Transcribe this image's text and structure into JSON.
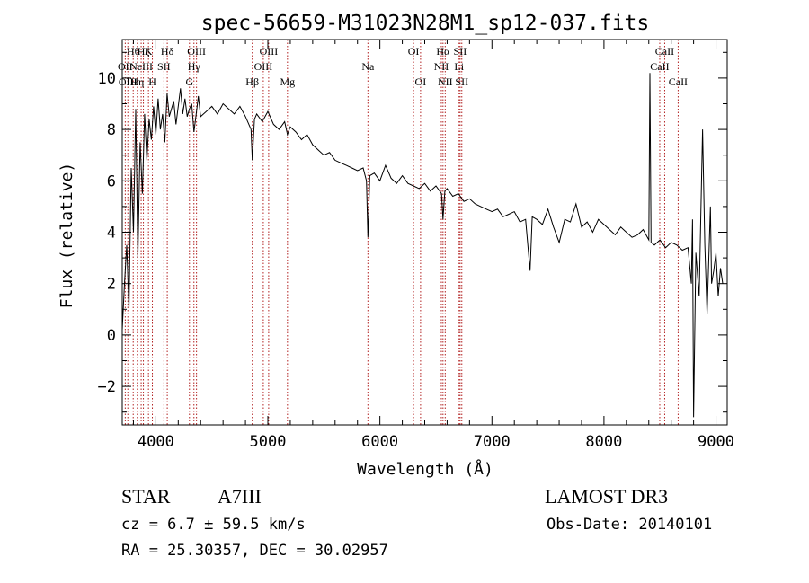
{
  "chart_data": {
    "type": "line",
    "title": "spec-56659-M31023N28M1_sp12-037.fits",
    "xlabel": "Wavelength (Å)",
    "ylabel": "Flux (relative)",
    "xlim": [
      3700,
      9100
    ],
    "ylim": [
      -3.5,
      11.5
    ],
    "xticks": [
      {
        "value": 4000,
        "label": "4000"
      },
      {
        "value": 5000,
        "label": "5000"
      },
      {
        "value": 6000,
        "label": "6000"
      },
      {
        "value": 7000,
        "label": "7000"
      },
      {
        "value": 8000,
        "label": "8000"
      },
      {
        "value": 9000,
        "label": "9000"
      }
    ],
    "yticks": [
      {
        "value": -2,
        "label": "−2"
      },
      {
        "value": 0,
        "label": "0"
      },
      {
        "value": 2,
        "label": "2"
      },
      {
        "value": 4,
        "label": "4"
      },
      {
        "value": 6,
        "label": "6"
      },
      {
        "value": 8,
        "label": "8"
      },
      {
        "value": 10,
        "label": "10"
      }
    ],
    "series": [
      {
        "name": "flux",
        "x": [
          3700,
          3720,
          3740,
          3760,
          3780,
          3800,
          3820,
          3840,
          3860,
          3880,
          3900,
          3920,
          3940,
          3960,
          3980,
          4000,
          4020,
          4040,
          4060,
          4080,
          4100,
          4120,
          4140,
          4160,
          4180,
          4200,
          4220,
          4240,
          4260,
          4280,
          4300,
          4320,
          4340,
          4360,
          4380,
          4400,
          4450,
          4500,
          4550,
          4600,
          4650,
          4700,
          4750,
          4800,
          4850,
          4861,
          4880,
          4900,
          4950,
          5000,
          5050,
          5100,
          5150,
          5175,
          5200,
          5250,
          5300,
          5350,
          5400,
          5450,
          5500,
          5550,
          5600,
          5650,
          5700,
          5750,
          5800,
          5850,
          5880,
          5893,
          5910,
          5950,
          6000,
          6050,
          6100,
          6150,
          6200,
          6250,
          6300,
          6350,
          6400,
          6450,
          6500,
          6550,
          6563,
          6580,
          6600,
          6650,
          6700,
          6750,
          6800,
          6850,
          6900,
          6950,
          7000,
          7050,
          7100,
          7150,
          7200,
          7250,
          7300,
          7340,
          7360,
          7400,
          7450,
          7500,
          7550,
          7600,
          7650,
          7700,
          7750,
          7800,
          7850,
          7900,
          7950,
          8000,
          8050,
          8100,
          8150,
          8200,
          8250,
          8300,
          8350,
          8400,
          8410,
          8420,
          8450,
          8500,
          8550,
          8600,
          8650,
          8700,
          8750,
          8780,
          8790,
          8800,
          8820,
          8850,
          8880,
          8900,
          8920,
          8950,
          8960,
          8980,
          9000,
          9020,
          9040,
          9060
        ],
        "y": [
          0.2,
          2.0,
          3.5,
          1.0,
          6.5,
          4.0,
          8.8,
          3.0,
          7.5,
          5.5,
          8.6,
          6.8,
          8.4,
          7.6,
          8.9,
          7.8,
          9.2,
          8.0,
          8.6,
          7.5,
          9.4,
          8.5,
          8.8,
          9.1,
          8.2,
          8.9,
          9.6,
          8.6,
          9.2,
          8.5,
          8.8,
          9.0,
          7.9,
          8.6,
          9.3,
          8.5,
          8.7,
          8.9,
          8.6,
          9.0,
          8.8,
          8.6,
          8.9,
          8.5,
          8.0,
          6.8,
          8.4,
          8.6,
          8.3,
          8.7,
          8.2,
          8.0,
          8.3,
          7.8,
          8.1,
          7.9,
          7.6,
          7.8,
          7.4,
          7.2,
          7.0,
          7.1,
          6.8,
          6.7,
          6.6,
          6.5,
          6.4,
          6.5,
          6.0,
          3.8,
          6.2,
          6.3,
          6.0,
          6.6,
          6.1,
          5.9,
          6.2,
          5.9,
          5.8,
          5.7,
          5.9,
          5.6,
          5.8,
          5.5,
          4.5,
          5.6,
          5.7,
          5.4,
          5.5,
          5.2,
          5.3,
          5.1,
          5.0,
          4.9,
          4.8,
          4.9,
          4.6,
          4.7,
          4.8,
          4.4,
          4.5,
          2.5,
          4.6,
          4.5,
          4.3,
          4.9,
          4.2,
          3.6,
          4.5,
          4.4,
          5.1,
          4.2,
          4.4,
          4.0,
          4.5,
          4.3,
          4.1,
          3.9,
          4.2,
          4.0,
          3.8,
          3.9,
          4.1,
          3.7,
          10.2,
          3.6,
          3.5,
          3.7,
          3.4,
          3.6,
          3.5,
          3.3,
          3.4,
          2.0,
          4.5,
          -3.2,
          3.2,
          1.5,
          8.0,
          3.5,
          0.8,
          5.0,
          2.0,
          2.5,
          3.2,
          1.5,
          2.6,
          2.0
        ]
      }
    ],
    "lines": [
      {
        "value": 3727,
        "label": "OII",
        "row": 1
      },
      {
        "value": 3750,
        "label": "OIII",
        "row": 2
      },
      {
        "value": 3798,
        "label": "Hθ",
        "row": 0
      },
      {
        "value": 3835,
        "label": "Hη",
        "row": 2
      },
      {
        "value": 3869,
        "label": "NeIII",
        "row": 1
      },
      {
        "value": 3889,
        "label": "Hζ",
        "row": 0
      },
      {
        "value": 3934,
        "label": "K",
        "row": 0
      },
      {
        "value": 3969,
        "label": "H",
        "row": 2
      },
      {
        "value": 4072,
        "label": "SII",
        "row": 1
      },
      {
        "value": 4102,
        "label": "Hδ",
        "row": 0
      },
      {
        "value": 4300,
        "label": "G",
        "row": 2
      },
      {
        "value": 4340,
        "label": "Hγ",
        "row": 1
      },
      {
        "value": 4363,
        "label": "OIII",
        "row": 0
      },
      {
        "value": 4861,
        "label": "Hβ",
        "row": 2
      },
      {
        "value": 4959,
        "label": "OIII",
        "row": 1
      },
      {
        "value": 5007,
        "label": "OIII",
        "row": 0
      },
      {
        "value": 5175,
        "label": "Mg",
        "row": 2
      },
      {
        "value": 5893,
        "label": "Na",
        "row": 1
      },
      {
        "value": 6300,
        "label": "OI",
        "row": 0
      },
      {
        "value": 6363,
        "label": "OI",
        "row": 2
      },
      {
        "value": 6548,
        "label": "NII",
        "row": 1
      },
      {
        "value": 6563,
        "label": "Hα",
        "row": 0
      },
      {
        "value": 6583,
        "label": "NII",
        "row": 2
      },
      {
        "value": 6707,
        "label": "Li",
        "row": 1
      },
      {
        "value": 6716,
        "label": "SII",
        "row": 0
      },
      {
        "value": 6731,
        "label": "SII",
        "row": 2
      },
      {
        "value": 8498,
        "label": "CaII",
        "row": 1
      },
      {
        "value": 8542,
        "label": "CaII",
        "row": 0
      },
      {
        "value": 8662,
        "label": "CaII",
        "row": 2
      }
    ]
  },
  "info": {
    "object_class": "STAR",
    "subclass": "A7III",
    "survey": "LAMOST DR3",
    "redshift": "cz = 6.7 ± 59.5 km/s",
    "obs_date": "Obs-Date: 20140101",
    "coords": "RA =  25.30357, DEC =  30.02957"
  },
  "colors": {
    "spectrum": "#000000",
    "line_marker": "#b22222",
    "axis": "#000000"
  }
}
